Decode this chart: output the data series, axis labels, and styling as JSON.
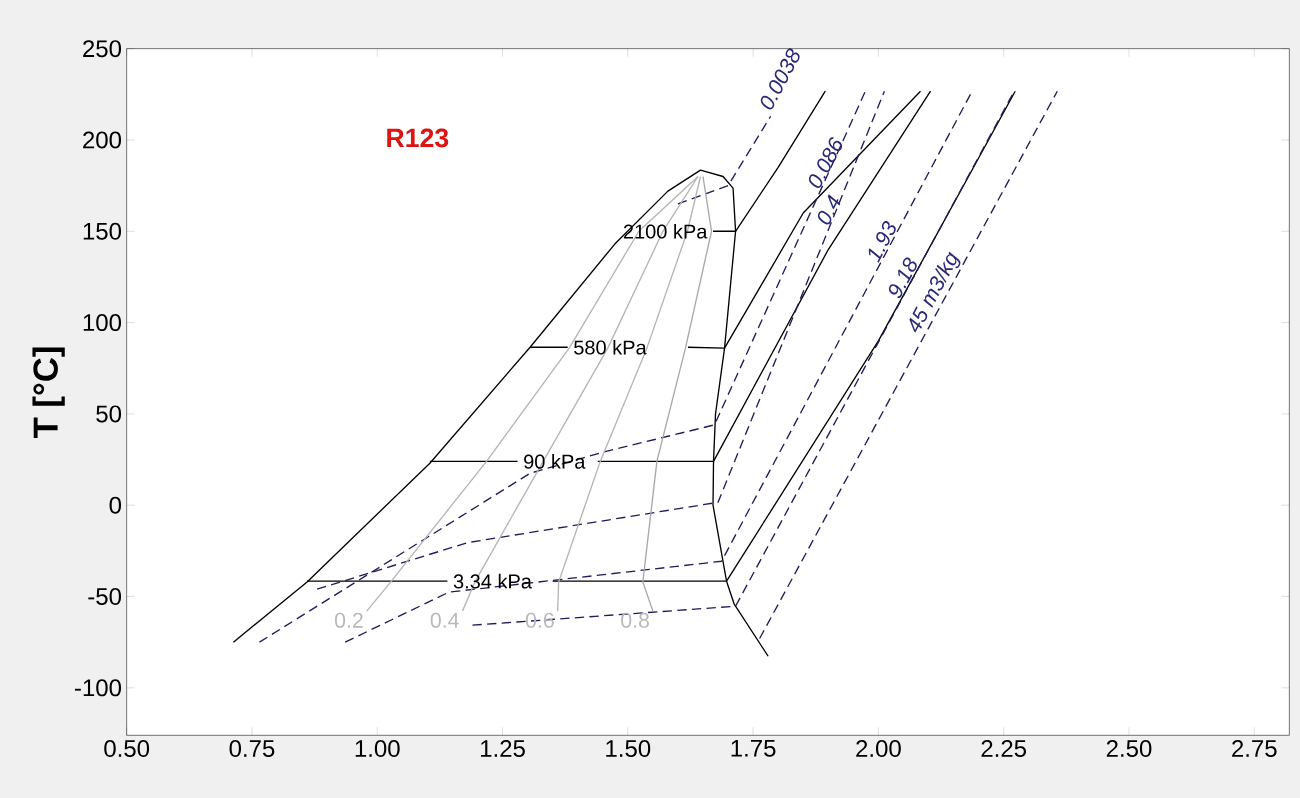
{
  "chart_data": {
    "type": "line",
    "title": "R123",
    "ylabel": "T [°C]",
    "xlim": [
      0.5,
      2.82
    ],
    "ylim": [
      -126,
      250
    ],
    "xticks": [
      {
        "value": 0.5,
        "label": "0.50"
      },
      {
        "value": 0.75,
        "label": "0.75"
      },
      {
        "value": 1.0,
        "label": "1.00"
      },
      {
        "value": 1.25,
        "label": "1.25"
      },
      {
        "value": 1.5,
        "label": "1.50"
      },
      {
        "value": 1.75,
        "label": "1.75"
      },
      {
        "value": 2.0,
        "label": "2.00"
      },
      {
        "value": 2.25,
        "label": "2.25"
      },
      {
        "value": 2.5,
        "label": "2.50"
      },
      {
        "value": 2.75,
        "label": "2.75"
      }
    ],
    "yticks": [
      -100,
      -50,
      0,
      50,
      100,
      150,
      200,
      250
    ],
    "series": [
      {
        "color": "#000000",
        "line_style": "solid",
        "x": [
          0.713,
          0.86,
          1.105,
          1.305,
          1.474,
          1.58,
          1.645,
          1.69,
          1.71,
          1.715,
          1.693,
          1.675,
          1.671,
          1.67,
          1.697,
          1.712,
          1.78
        ],
        "values": [
          -75,
          -42,
          23,
          86.5,
          143,
          172,
          183.5,
          180,
          173.6,
          150,
          86,
          50,
          24,
          0,
          -41.6,
          -54,
          -82.7
        ]
      },
      {
        "color": "#000000",
        "line_style": "solid",
        "x": [
          1.67,
          1.715,
          1.8,
          1.894
        ],
        "values": [
          150,
          150,
          185,
          226.7
        ]
      },
      {
        "color": "#000000",
        "line_style": "solid",
        "x": [
          1.305,
          1.38,
          1.5,
          1.62,
          1.693,
          1.85,
          2.084
        ],
        "values": [
          86.5,
          86.5,
          null,
          86.5,
          86,
          160,
          226.7
        ]
      },
      {
        "color": "#000000",
        "line_style": "solid",
        "x": [
          1.105,
          1.28,
          1.36,
          1.44,
          1.671,
          1.9,
          2.104
        ],
        "values": [
          24,
          24,
          null,
          24,
          24,
          140,
          226.7
        ]
      },
      {
        "color": "#000000",
        "line_style": "solid",
        "x": [
          0.86,
          1.14,
          1.24,
          1.35,
          1.697,
          2.0,
          2.273
        ],
        "values": [
          -41.6,
          -41.6,
          null,
          -41.6,
          -41.6,
          90,
          226.7
        ]
      },
      {
        "color": "#1c1c5c",
        "line_style": "dashed",
        "x": [
          1.6,
          1.7,
          1.785
        ],
        "values": [
          165,
          175,
          213
        ]
      },
      {
        "color": "#1c1c5c",
        "line_style": "dashed",
        "x": [
          0.765,
          1.305,
          1.45,
          1.673,
          1.974
        ],
        "values": [
          -75,
          17.5,
          29,
          44,
          226.7
        ]
      },
      {
        "color": "#1c1c5c",
        "line_style": "dashed",
        "x": [
          0.88,
          1.18,
          1.68,
          2.012
        ],
        "values": [
          -46,
          -20.5,
          1.6,
          226.7
        ]
      },
      {
        "color": "#1c1c5c",
        "line_style": "dashed",
        "x": [
          0.936,
          1.143,
          1.687,
          2.187
        ],
        "values": [
          -75,
          -47.6,
          -30.7,
          226.7
        ]
      },
      {
        "color": "#1c1c5c",
        "line_style": "dashed",
        "x": [
          1.19,
          1.715,
          2.271
        ],
        "values": [
          -65.7,
          -55.3,
          226.7
        ]
      },
      {
        "color": "#1c1c5c",
        "line_style": "dashed",
        "x": [
          1.763,
          2.357
        ],
        "values": [
          -73,
          226.7
        ]
      },
      {
        "color": "#b4b4b4",
        "line_style": "solid",
        "x": [
          0.979,
          1.027,
          1.218,
          1.383,
          1.522,
          1.64
        ],
        "values": [
          -58,
          -42,
          24,
          86,
          150,
          180
        ]
      },
      {
        "color": "#b4b4b4",
        "line_style": "solid",
        "x": [
          1.17,
          1.195,
          1.331,
          1.46,
          1.57,
          1.64
        ],
        "values": [
          -58,
          -42,
          24,
          86,
          150,
          180
        ]
      },
      {
        "color": "#b4b4b4",
        "line_style": "solid",
        "x": [
          1.36,
          1.362,
          1.445,
          1.538,
          1.619,
          1.645
        ],
        "values": [
          -58,
          -42,
          24,
          86,
          150,
          180
        ]
      },
      {
        "color": "#a8a8a8",
        "line_style": "solid",
        "x": [
          1.55,
          1.53,
          1.558,
          1.615,
          1.667,
          1.65
        ],
        "values": [
          -58,
          -42,
          24,
          86,
          150,
          180
        ]
      }
    ],
    "annotations": [
      {
        "text": "2100 kPa",
        "x": 1.67,
        "y": 150
      },
      {
        "text": "580 kPa",
        "x": 1.38,
        "y": 86.5
      },
      {
        "text": "90 kPa",
        "x": 1.28,
        "y": 24
      },
      {
        "text": "3.34 kPa",
        "x": 1.14,
        "y": -41.6
      },
      {
        "text": "0.2",
        "x": 0.979,
        "y": -58
      },
      {
        "text": "0.4",
        "x": 1.17,
        "y": -58
      },
      {
        "text": "0.6",
        "x": 1.36,
        "y": -58
      },
      {
        "text": "0.8",
        "x": 1.55,
        "y": -58
      },
      {
        "text": "0.0038",
        "x": 1.785,
        "y": 213
      },
      {
        "text": "0.086",
        "x": 1.881,
        "y": 170
      },
      {
        "text": "0.4",
        "x": 1.899,
        "y": 150
      },
      {
        "text": "1.93",
        "x": 1.999,
        "y": 130
      },
      {
        "text": "9.18",
        "x": 2.041,
        "y": 110
      },
      {
        "text": "45 m3/kg",
        "x": 2.086,
        "y": 90
      }
    ]
  }
}
